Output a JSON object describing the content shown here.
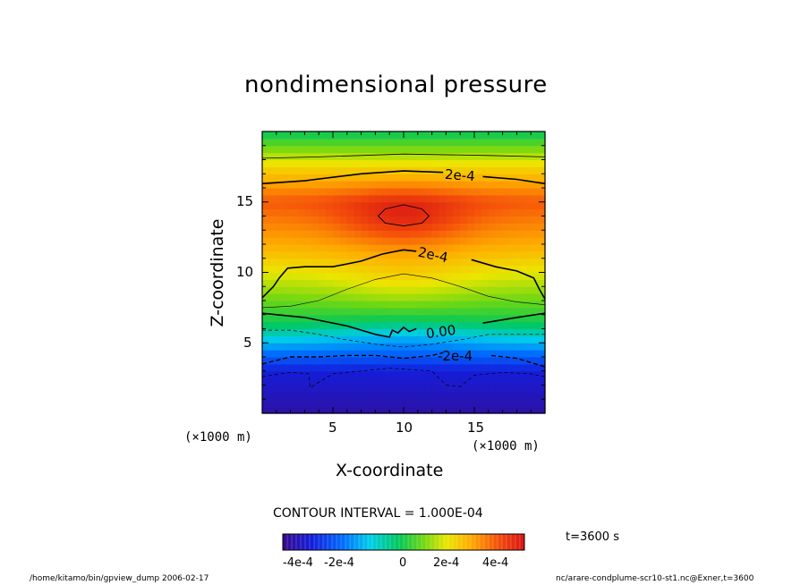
{
  "chart_data": {
    "type": "heatmap",
    "title": "nondimensional pressure",
    "xlabel": "X-coordinate",
    "ylabel": "Z-coordinate",
    "x_unit_label": "(×1000 m)",
    "y_unit_label": "(×1000 m)",
    "xlim": [
      0,
      20
    ],
    "ylim": [
      0,
      20
    ],
    "x_ticks": [
      5,
      10,
      15
    ],
    "y_ticks": [
      5,
      10,
      15
    ],
    "x_tick_labels": [
      "5",
      "10",
      "15"
    ],
    "y_tick_labels": [
      "5",
      "10",
      "15"
    ],
    "value_range": [
      -0.0005,
      0.0005
    ],
    "contour_interval_text": "CONTOUR INTERVAL = 1.000E-04",
    "contour_labels": [
      {
        "text": "2e-4",
        "x": 13.2,
        "z": 16.6
      },
      {
        "text": "2e-4",
        "x": 11.5,
        "z": 11.0
      },
      {
        "text": "0.00",
        "x": 12.7,
        "z": 5.6
      },
      {
        "text": "-2e-4",
        "x": 14.5,
        "z": 3.9
      }
    ],
    "colorbar": {
      "range": [
        -0.0005,
        0.0005
      ],
      "tick_values": [
        -0.0004,
        -0.0002,
        0,
        0.0002,
        0.0004
      ],
      "tick_labels": [
        "-4e-4",
        "-2e-4",
        "0",
        "2e-4",
        "4e-4"
      ]
    }
  },
  "footer_left": "/home/kitamo/bin/gpview_dump  2006-02-17",
  "footer_right": "nc/arare-condplume-scr10-st1.nc@Exner,t=3600",
  "time_label": "t=3600 s",
  "colors": {
    "negative_extreme": "#3a0fa0",
    "zero": "#00c850",
    "positive_extreme": "#d81818"
  }
}
